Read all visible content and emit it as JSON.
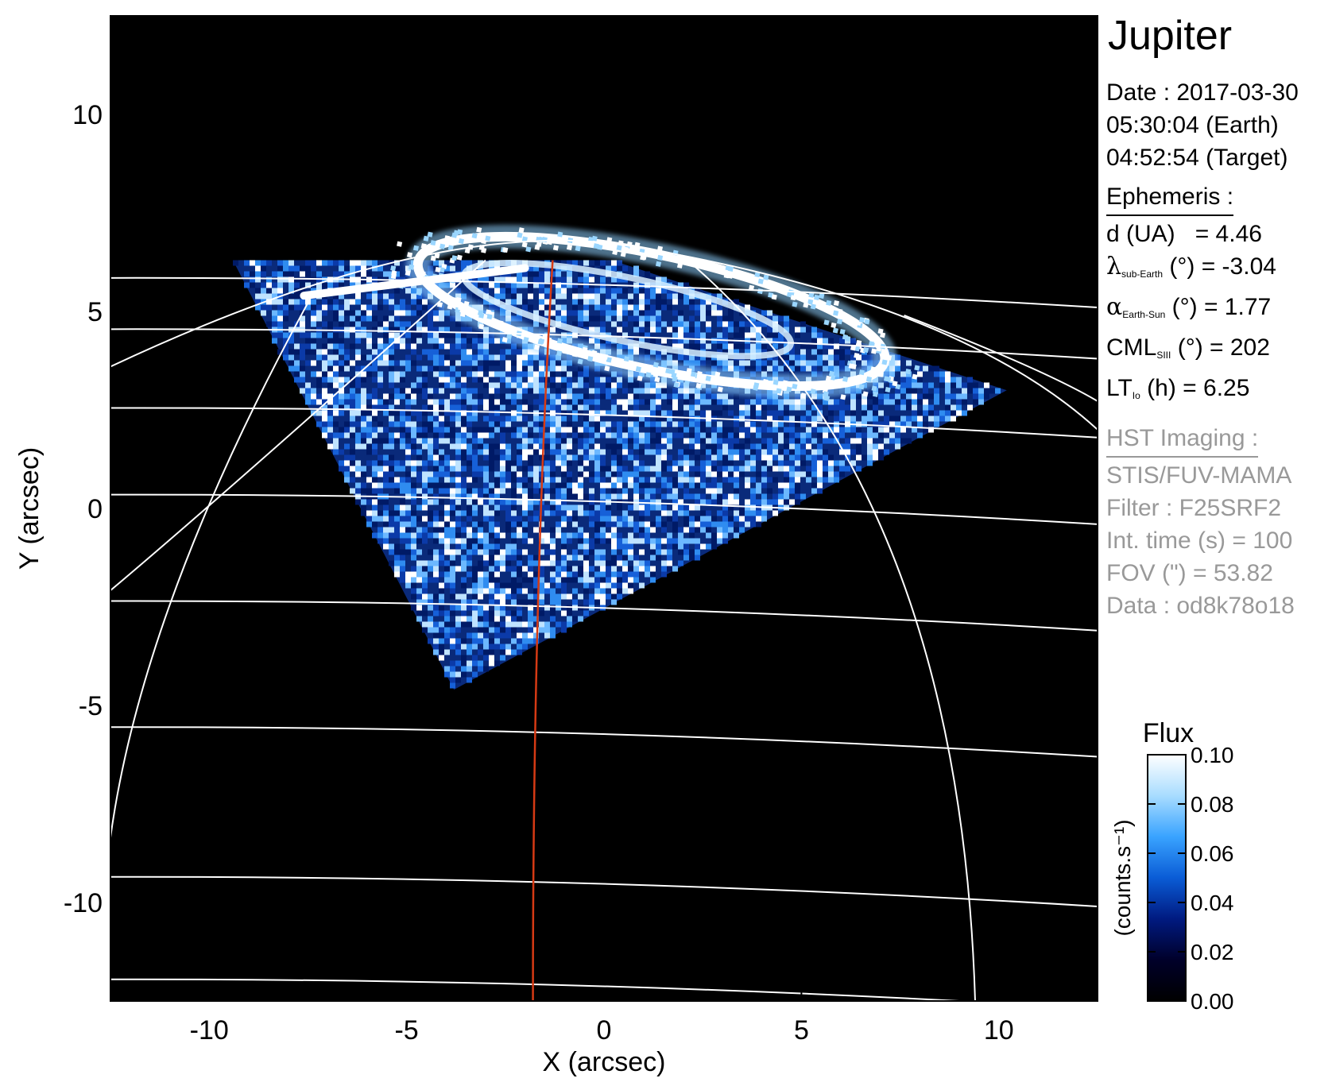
{
  "chart_data": {
    "type": "heatmap",
    "title": "Jupiter",
    "xlabel": "X (arcsec)",
    "ylabel": "Y (arcsec)",
    "xlim": [
      -12.5,
      12.5
    ],
    "ylim": [
      -12.5,
      12.5
    ],
    "x_ticks": [
      -10,
      -5,
      0,
      5,
      10
    ],
    "y_ticks": [
      -10,
      -5,
      0,
      5,
      10
    ],
    "colorbar": {
      "title": "Flux",
      "label": "(counts.s⁻¹)",
      "range": [
        0.0,
        0.1
      ],
      "ticks": [
        "0.10",
        "0.08",
        "0.06",
        "0.04",
        "0.02",
        "0.00"
      ],
      "colors": [
        "#000000",
        "#00002a",
        "#001a80",
        "#0a5cd6",
        "#39a3ff",
        "#a8dcff",
        "#ffffff"
      ]
    },
    "image_footprint_corners_arcsec": [
      [
        -9.4,
        6.3
      ],
      [
        0.2,
        6.3
      ],
      [
        10.2,
        3.0
      ],
      [
        -3.8,
        -4.6
      ]
    ],
    "main_oval_center_arcsec": [
      1.2,
      5.0
    ],
    "red_meridian_x_arcsec": -1.8,
    "grid": "latitude/longitude grid (white)",
    "colors": {
      "background": "#000000",
      "grid_line": "#ffffff",
      "meridian_line": "#d63a14"
    }
  },
  "sidebar": {
    "title": "Jupiter",
    "date_line": "Date : 2017-03-30",
    "time_earth": "05:30:04 (Earth)",
    "time_target": "04:52:54 (Target)",
    "ephemeris_header": "Ephemeris :",
    "ephemeris": {
      "d_label": "d (UA)",
      "d_value": "= 4.46",
      "lat_symbol": "λ",
      "lat_sub": "sub-Earth",
      "lat_value": "(°) = -3.04",
      "phase_symbol": "α",
      "phase_sub": "Earth-Sun",
      "phase_value": "(°) = 1.77",
      "cml_label": "CML",
      "cml_sub": "SIII",
      "cml_value": "(°) = 202",
      "lt_label": "LT",
      "lt_sub": "Io",
      "lt_value": "(h) = 6.25"
    },
    "hst_header": "HST Imaging :",
    "hst": {
      "instrument": "STIS/FUV-MAMA",
      "filter": "Filter : F25SRF2",
      "int_time": "Int. time (s) = 100",
      "fov": "FOV (\") = 53.82",
      "dataset": "Data : od8k78o18"
    }
  }
}
